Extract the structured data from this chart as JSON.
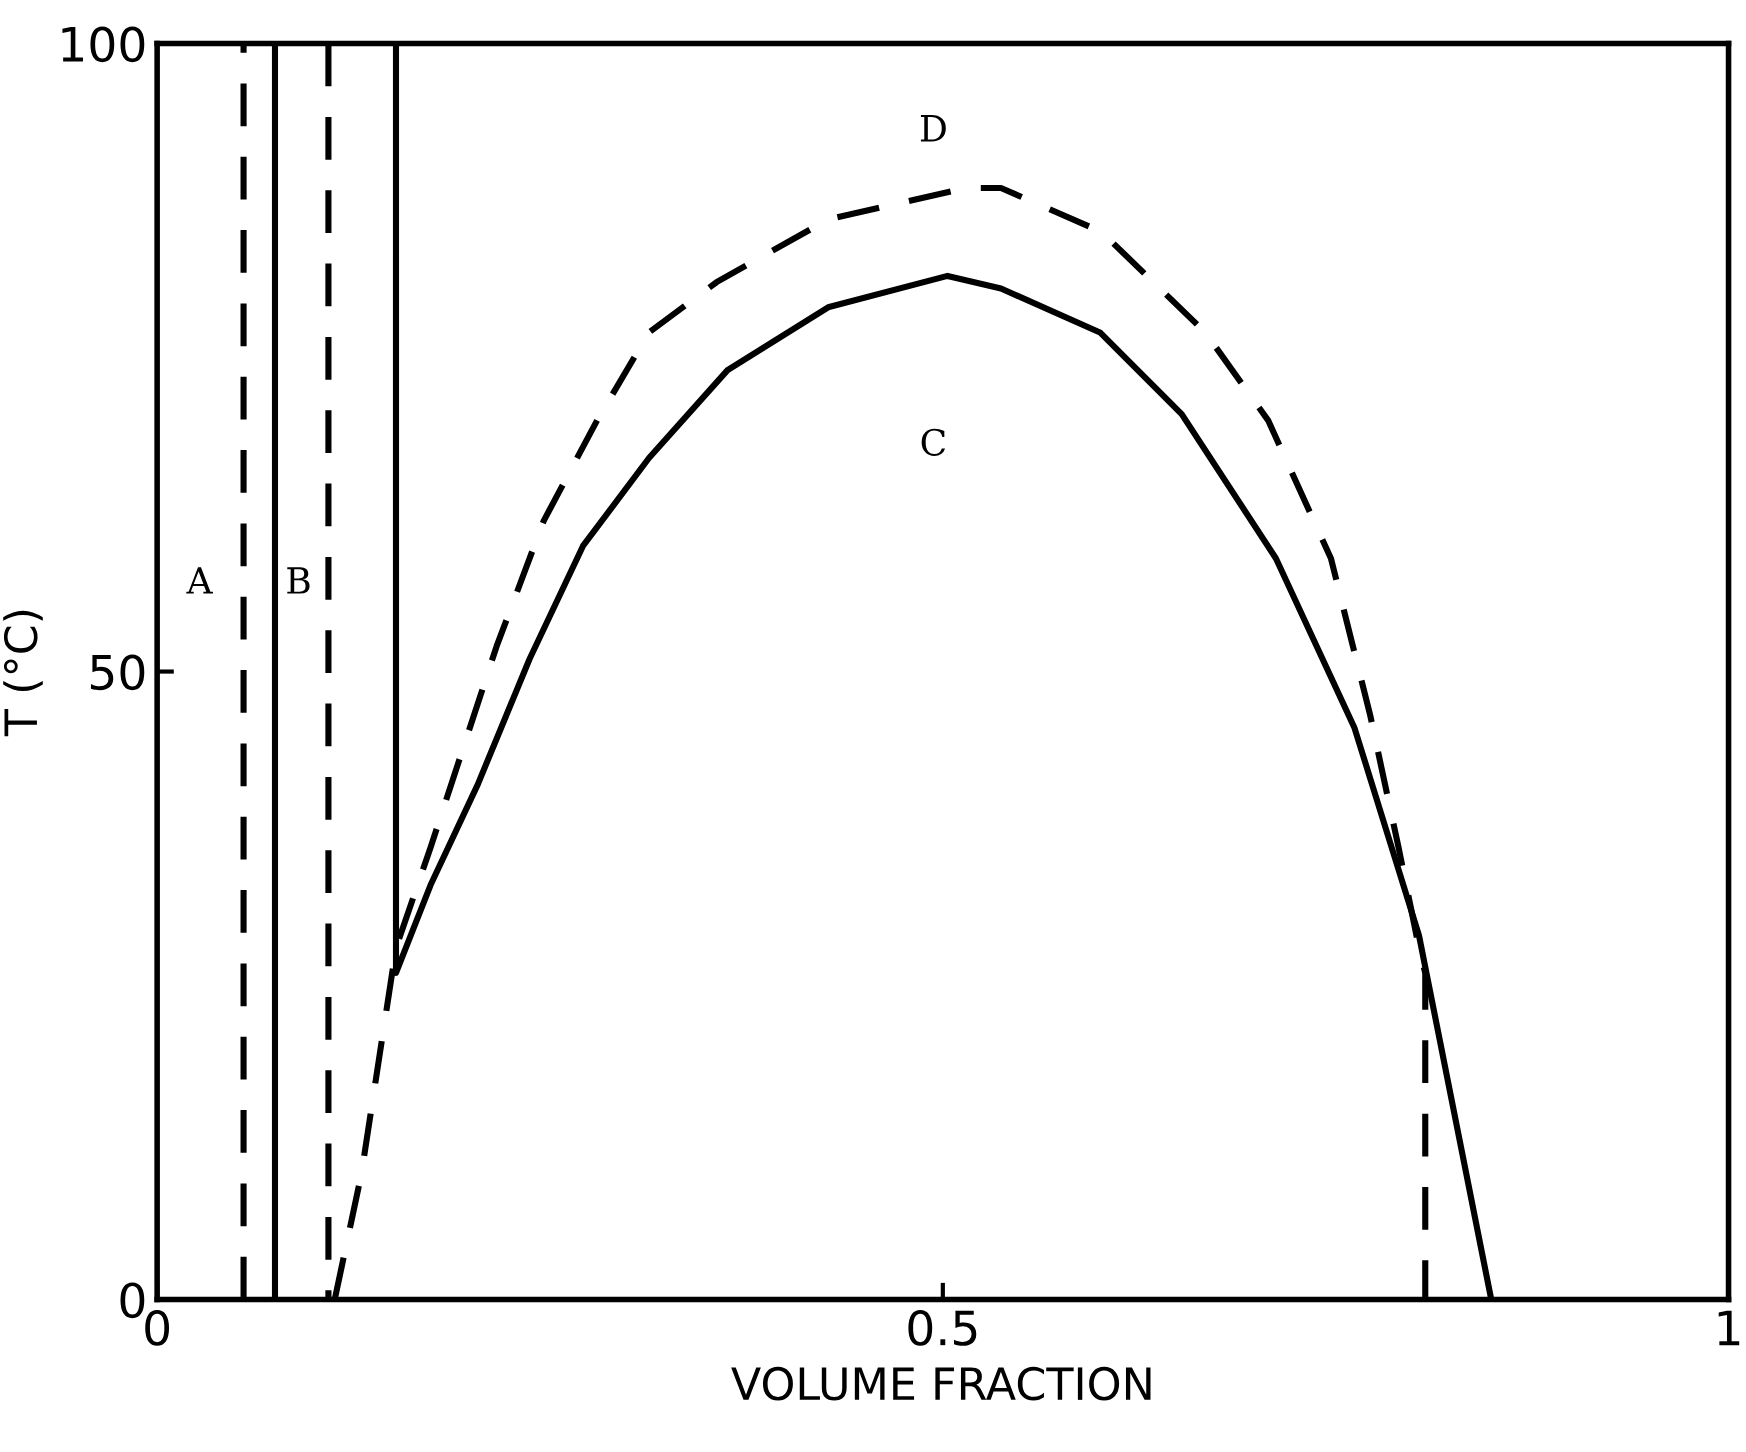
{
  "chart_data": {
    "type": "line",
    "xlabel": "VOLUME FRACTION",
    "ylabel": "T (°C)",
    "xlim": [
      0,
      1
    ],
    "ylim": [
      0,
      100
    ],
    "xticks": [
      0,
      0.5,
      1
    ],
    "yticks": [
      0,
      50,
      100
    ],
    "grid": false,
    "marker": "none",
    "series": [
      {
        "color": "#000000",
        "line_style": "dashed",
        "x": [
          0.055,
          0.055
        ],
        "values": [
          0,
          100
        ]
      },
      {
        "color": "#000000",
        "line_style": "solid",
        "x": [
          0.075,
          0.075
        ],
        "values": [
          0,
          100
        ]
      },
      {
        "color": "#000000",
        "line_style": "dashed",
        "x": [
          0.109,
          0.109
        ],
        "values": [
          100,
          0
        ]
      },
      {
        "color": "#000000",
        "line_style": "solid",
        "x": [
          0.152,
          0.152,
          0.174,
          0.204,
          0.237,
          0.271,
          0.313,
          0.363,
          0.427,
          0.503,
          0.537,
          0.6,
          0.652,
          0.712,
          0.762,
          0.803,
          0.849
        ],
        "values": [
          100,
          26,
          33,
          41,
          51,
          60,
          67,
          74,
          79,
          81.5,
          80.5,
          77,
          70.5,
          59,
          45.5,
          29,
          0
        ]
      },
      {
        "color": "#000000",
        "line_style": "dashed",
        "x": [
          0.113,
          0.13,
          0.152,
          0.174,
          0.195,
          0.216,
          0.246,
          0.28,
          0.313,
          0.356,
          0.427,
          0.515,
          0.537,
          0.601,
          0.667,
          0.707,
          0.747,
          0.772,
          0.79,
          0.803,
          0.807,
          0.807
        ],
        "values": [
          0,
          10,
          28,
          36,
          44,
          52,
          62,
          70,
          77,
          81,
          86,
          88.5,
          88.5,
          85,
          77,
          70,
          59,
          46.5,
          36,
          28,
          26,
          0
        ]
      }
    ],
    "annotations": [
      "A",
      "B",
      "C",
      "D"
    ]
  }
}
